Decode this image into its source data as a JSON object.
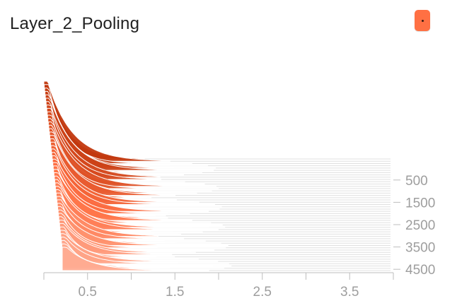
{
  "card": {
    "title": "Layer_2_Pooling"
  },
  "colors": {
    "accent": "#ff7043",
    "accent_dark": "#bf360c",
    "accent_light": "#ffab91",
    "axis": "#bdbdbd",
    "tick_text": "#9e9e9e"
  },
  "chart_data": {
    "type": "area",
    "title": "Layer_2_Pooling",
    "xlabel": "",
    "ylabel": "",
    "xlim": [
      0,
      4.0
    ],
    "ylim": [
      0,
      5000
    ],
    "x_ticks": [
      "0.5",
      "1.5",
      "2.5",
      "3.5"
    ],
    "x_tick_values": [
      0.5,
      1.5,
      2.5,
      3.5
    ],
    "y_ticks": [
      "500",
      "1500",
      "2500",
      "3500",
      "4500"
    ],
    "y_tick_values": [
      500,
      1500,
      2500,
      3500,
      4500
    ],
    "grid": false,
    "legend": "none",
    "series_count": 50,
    "step_first": 0,
    "step_last": 5000,
    "x_density_peak": 0.05,
    "density_peak_first": 1.0,
    "density_peak_last": 0.3
  }
}
